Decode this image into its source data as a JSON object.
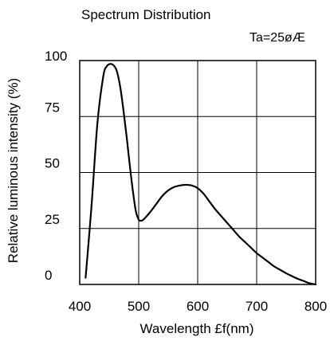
{
  "chart_data": {
    "type": "line",
    "title": "Spectrum Distribution",
    "annotation": "Ta=25øÆ",
    "xlabel": "Wavelength  £f(nm)",
    "ylabel": "Relative luminous intensity (%)",
    "xlim": [
      400,
      800
    ],
    "ylim": [
      0,
      100
    ],
    "x_ticks": [
      400,
      500,
      600,
      700,
      800
    ],
    "y_ticks": [
      0,
      25,
      50,
      75,
      100
    ],
    "grid": true,
    "legend": "none",
    "line_color": "#000000",
    "series": [
      {
        "x": [
          410,
          420,
          430,
          440,
          446,
          452,
          457,
          462,
          466,
          470,
          475,
          480,
          485,
          490,
          495,
          500,
          505,
          510,
          520,
          530,
          540,
          550,
          560,
          570,
          580,
          590,
          600,
          610,
          620,
          630,
          640,
          650,
          660,
          670,
          680,
          690,
          700,
          710,
          720,
          730,
          740,
          750,
          760,
          770,
          780,
          790,
          800
        ],
        "y": [
          3,
          35,
          72,
          93,
          97.5,
          98.5,
          98,
          96,
          92,
          86,
          76,
          65,
          53,
          42,
          33,
          29,
          28.5,
          29.5,
          32.5,
          36,
          39.5,
          42,
          43.5,
          44.2,
          44.5,
          44.2,
          43,
          40.5,
          37,
          33.5,
          30.5,
          27.5,
          24.5,
          21.5,
          19,
          16.5,
          14,
          12,
          10,
          8,
          6.5,
          5,
          3.7,
          2.5,
          1.5,
          0.5,
          0
        ]
      }
    ]
  }
}
